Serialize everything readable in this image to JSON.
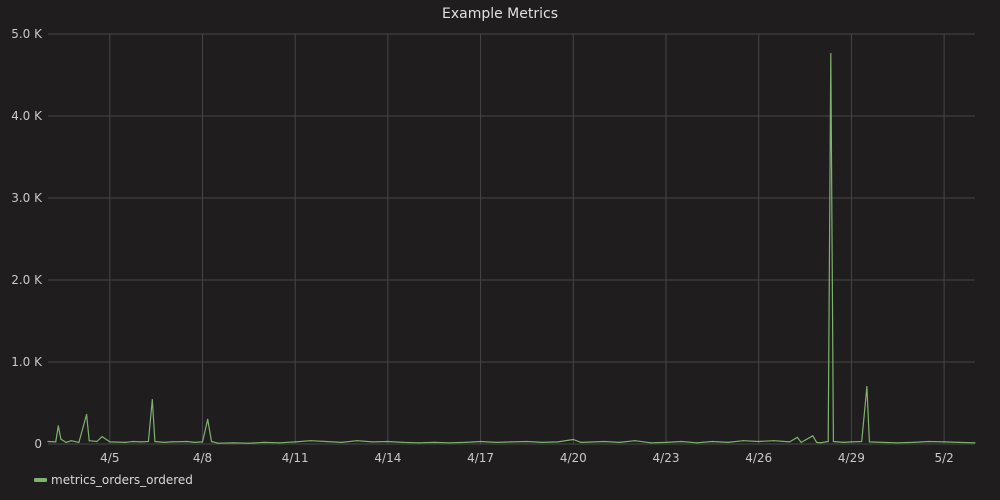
{
  "panel": {
    "title": "Example Metrics"
  },
  "colors": {
    "background": "#1f1d1e",
    "grid": "#464646",
    "series": "#7eb26d"
  },
  "chart_data": {
    "type": "line",
    "title": "Example Metrics",
    "xlabel": "",
    "ylabel": "",
    "x_ticks": [
      "4/5",
      "4/8",
      "4/11",
      "4/14",
      "4/17",
      "4/20",
      "4/23",
      "4/26",
      "4/29",
      "5/2"
    ],
    "y_ticks": [
      "0",
      "1.0 K",
      "2.0 K",
      "3.0 K",
      "4.0 K",
      "5.0 K"
    ],
    "xlim": [
      "2016-04-03",
      "2016-05-03"
    ],
    "ylim": [
      0,
      5000
    ],
    "grid": true,
    "legend_position": "bottom-left",
    "series": [
      {
        "name": "metrics_orders_ordered",
        "points": [
          [
            "2016-04-03",
            30
          ],
          [
            "2016-04-03 06:00",
            25
          ],
          [
            "2016-04-03 08:00",
            220
          ],
          [
            "2016-04-03 10:00",
            60
          ],
          [
            "2016-04-03 14:00",
            20
          ],
          [
            "2016-04-03 18:00",
            40
          ],
          [
            "2016-04-04",
            20
          ],
          [
            "2016-04-04 06:00",
            360
          ],
          [
            "2016-04-04 08:00",
            40
          ],
          [
            "2016-04-04 14:00",
            30
          ],
          [
            "2016-04-04 18:00",
            90
          ],
          [
            "2016-04-05",
            25
          ],
          [
            "2016-04-05 12:00",
            20
          ],
          [
            "2016-04-05 18:00",
            30
          ],
          [
            "2016-04-06",
            25
          ],
          [
            "2016-04-06 06:00",
            30
          ],
          [
            "2016-04-06 09:00",
            540
          ],
          [
            "2016-04-06 11:00",
            30
          ],
          [
            "2016-04-06 18:00",
            20
          ],
          [
            "2016-04-07",
            25
          ],
          [
            "2016-04-07 12:00",
            30
          ],
          [
            "2016-04-07 18:00",
            20
          ],
          [
            "2016-04-08",
            25
          ],
          [
            "2016-04-08 04:00",
            300
          ],
          [
            "2016-04-08 07:00",
            30
          ],
          [
            "2016-04-08 12:00",
            10
          ],
          [
            "2016-04-09",
            15
          ],
          [
            "2016-04-09 12:00",
            10
          ],
          [
            "2016-04-10",
            20
          ],
          [
            "2016-04-10 12:00",
            15
          ],
          [
            "2016-04-11",
            25
          ],
          [
            "2016-04-11 12:00",
            40
          ],
          [
            "2016-04-12",
            30
          ],
          [
            "2016-04-12 12:00",
            20
          ],
          [
            "2016-04-13",
            40
          ],
          [
            "2016-04-13 12:00",
            25
          ],
          [
            "2016-04-14",
            30
          ],
          [
            "2016-04-14 12:00",
            20
          ],
          [
            "2016-04-15",
            15
          ],
          [
            "2016-04-15 12:00",
            20
          ],
          [
            "2016-04-16",
            15
          ],
          [
            "2016-04-16 12:00",
            20
          ],
          [
            "2016-04-17",
            30
          ],
          [
            "2016-04-17 12:00",
            20
          ],
          [
            "2016-04-18",
            25
          ],
          [
            "2016-04-18 12:00",
            30
          ],
          [
            "2016-04-19",
            20
          ],
          [
            "2016-04-19 12:00",
            25
          ],
          [
            "2016-04-20",
            55
          ],
          [
            "2016-04-20 06:00",
            20
          ],
          [
            "2016-04-21",
            30
          ],
          [
            "2016-04-21 12:00",
            20
          ],
          [
            "2016-04-22",
            40
          ],
          [
            "2016-04-22 12:00",
            15
          ],
          [
            "2016-04-23",
            20
          ],
          [
            "2016-04-23 12:00",
            30
          ],
          [
            "2016-04-24",
            15
          ],
          [
            "2016-04-24 12:00",
            30
          ],
          [
            "2016-04-25",
            20
          ],
          [
            "2016-04-25 12:00",
            40
          ],
          [
            "2016-04-26",
            30
          ],
          [
            "2016-04-26 12:00",
            40
          ],
          [
            "2016-04-27",
            25
          ],
          [
            "2016-04-27 06:00",
            80
          ],
          [
            "2016-04-27 09:00",
            20
          ],
          [
            "2016-04-27 18:00",
            100
          ],
          [
            "2016-04-27 21:00",
            20
          ],
          [
            "2016-04-28",
            15
          ],
          [
            "2016-04-28 06:00",
            30
          ],
          [
            "2016-04-28 08:00",
            4760
          ],
          [
            "2016-04-28 10:00",
            30
          ],
          [
            "2016-04-28 18:00",
            20
          ],
          [
            "2016-04-29",
            25
          ],
          [
            "2016-04-29 08:00",
            30
          ],
          [
            "2016-04-29 12:00",
            700
          ],
          [
            "2016-04-29 14:00",
            25
          ],
          [
            "2016-04-30",
            20
          ],
          [
            "2016-04-30 12:00",
            15
          ],
          [
            "2016-05-01",
            20
          ],
          [
            "2016-05-01 12:00",
            30
          ],
          [
            "2016-05-02",
            25
          ],
          [
            "2016-05-02 12:00",
            20
          ],
          [
            "2016-05-03",
            15
          ]
        ]
      }
    ]
  }
}
